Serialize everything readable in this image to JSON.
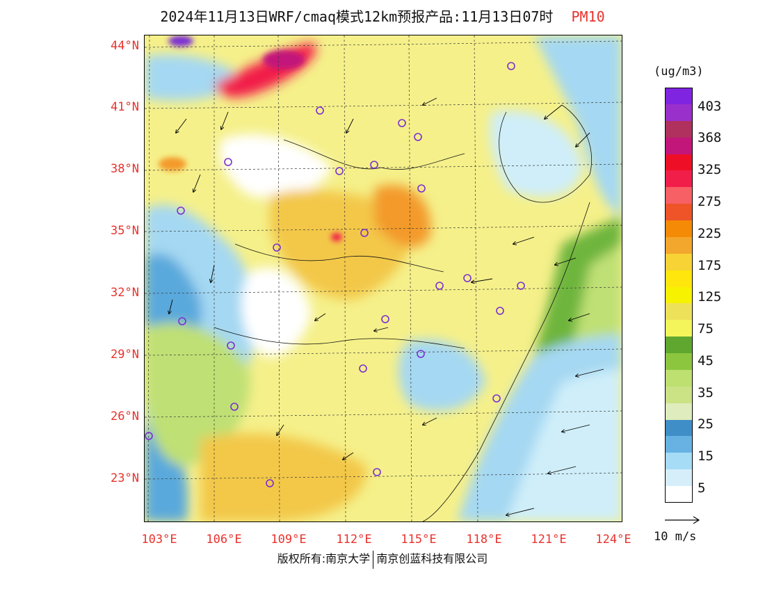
{
  "title": {
    "main": "2024年11月13日WRF/cmaq模式12km预报产品:11月13日07时",
    "pollutant": "PM10"
  },
  "map": {
    "lat_labels": [
      "44°N",
      "41°N",
      "38°N",
      "35°N",
      "32°N",
      "29°N",
      "26°N",
      "23°N"
    ],
    "lon_labels": [
      "103°E",
      "106°E",
      "109°E",
      "112°E",
      "115°E",
      "118°E",
      "121°E",
      "124°E"
    ],
    "colors": {
      "background": "#f5f08a",
      "sea": "#cfeef9",
      "clean": "#ffffff",
      "light_blue": "#a5d8f2",
      "mid_blue": "#5aa9dc",
      "green": "#6eb53c",
      "light_green": "#bfe075",
      "orange_yellow": "#f3c84a",
      "orange": "#f39a2a",
      "red": "#f21e4a",
      "magenta": "#c2167a",
      "purple": "#7a2fd2"
    }
  },
  "colorbar": {
    "units": "(ug/m3)",
    "labels": [
      "403",
      "368",
      "325",
      "275",
      "225",
      "175",
      "125",
      "75",
      "45",
      "35",
      "25",
      "15",
      "5"
    ],
    "colors": [
      "#7f24e0",
      "#9a30cc",
      "#b0305e",
      "#c2167a",
      "#ee0f26",
      "#f21e4a",
      "#f76065",
      "#ee5428",
      "#f58a06",
      "#f3a72c",
      "#f7d335",
      "#ffe60c",
      "#f7f200",
      "#eee15a",
      "#f3f55a",
      "#5fa72f",
      "#8cc63f",
      "#bde070",
      "#cbe285",
      "#dfecbd",
      "#3f8ec7",
      "#68b2e3",
      "#a6dcf6",
      "#d5eefa",
      "#ffffff"
    ]
  },
  "wind_legend": {
    "label": "10 m/s"
  },
  "copyright": {
    "left": "版权所有:南京大学",
    "right": "南京创蓝科技有限公司"
  }
}
